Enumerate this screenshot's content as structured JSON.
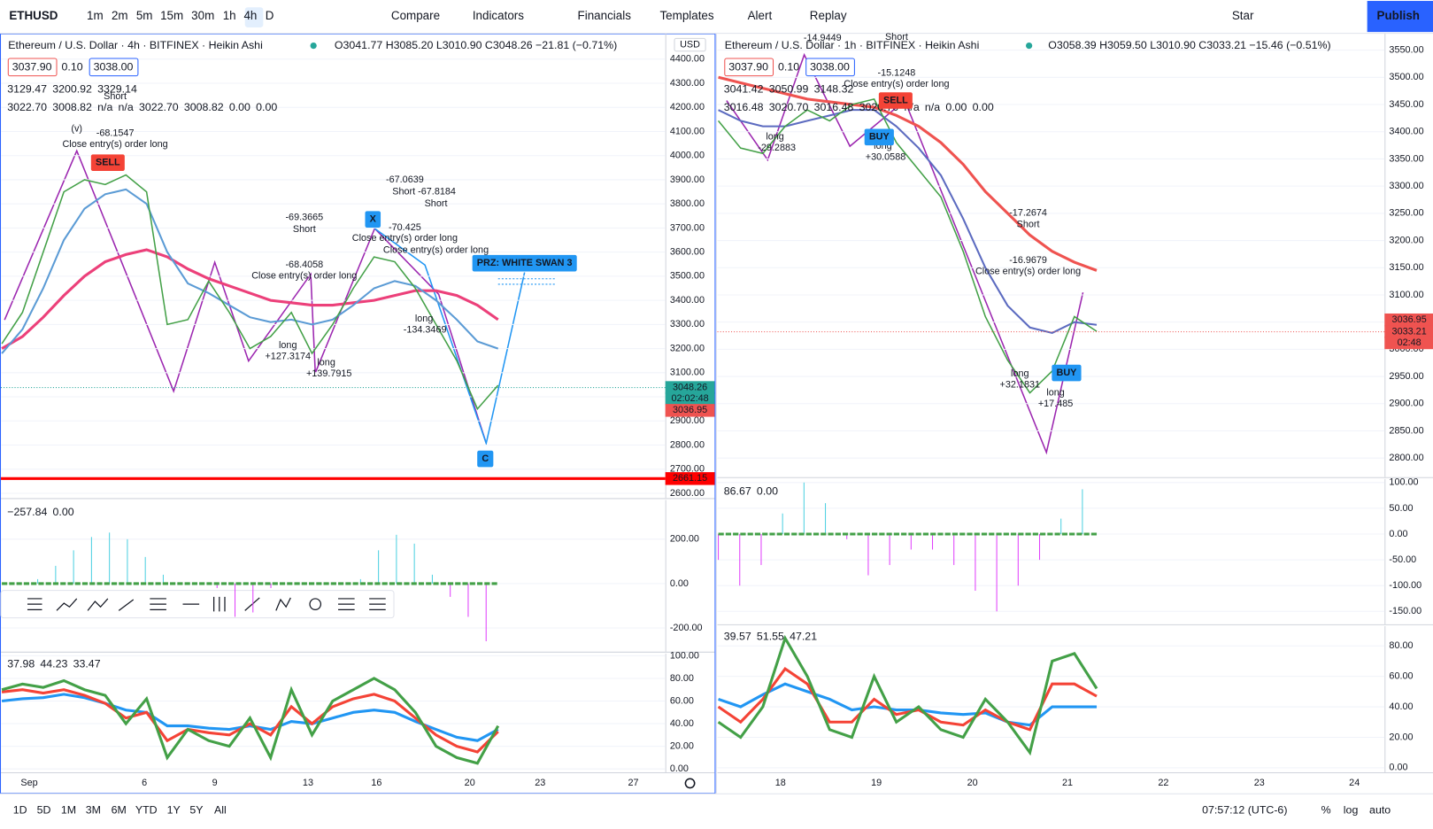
{
  "toolbar": {
    "symbol": "ETHUSD",
    "intervals": [
      "1m",
      "2m",
      "5m",
      "15m",
      "30m",
      "1h",
      "4h",
      "D"
    ],
    "items": [
      "Compare",
      "Indicators",
      "Financials",
      "Templates",
      "Alert",
      "Replay"
    ],
    "star": "Star",
    "publish": "Publish"
  },
  "left": {
    "legend": "Ethereum / U.S. Dollar · 4h · BITFINEX · Heikin Ashi",
    "ohlc": "O3041.77 H3085.20 L3010.90 C3048.26 −21.81 (−0.71%)",
    "bid": "3037.90",
    "spread": "0.10",
    "ask": "3038.00",
    "ind1": [
      "3129.47",
      "3200.92",
      "3329.14"
    ],
    "ind2": [
      "3022.70",
      "3008.82",
      "n/a",
      "n/a",
      "3022.70",
      "3008.82",
      "0.00",
      "0.00"
    ],
    "currency": "USD",
    "price": {
      "ylim": [
        2580,
        4505
      ],
      "yticks": [
        {
          "value": 2600,
          "label": "2600.00"
        },
        {
          "value": 2700,
          "label": "2700.00"
        },
        {
          "value": 2800,
          "label": "2800.00"
        },
        {
          "value": 2900,
          "label": "2900.00"
        },
        {
          "value": 3000,
          "label": "3000.00"
        },
        {
          "value": 3100,
          "label": "3100.00"
        },
        {
          "value": 3200,
          "label": "3200.00"
        },
        {
          "value": 3300,
          "label": "3300.00"
        },
        {
          "value": 3400,
          "label": "3400.00"
        },
        {
          "value": 3500,
          "label": "3500.00"
        },
        {
          "value": 3600,
          "label": "3600.00"
        },
        {
          "value": 3700,
          "label": "3700.00"
        },
        {
          "value": 3800,
          "label": "3800.00"
        },
        {
          "value": 3900,
          "label": "3900.00"
        },
        {
          "value": 4000,
          "label": "4000.00"
        },
        {
          "value": 4100,
          "label": "4100.00"
        },
        {
          "value": 4200,
          "label": "4200.00"
        },
        {
          "value": 4300,
          "label": "4300.00"
        },
        {
          "value": 4400,
          "label": "4400.00"
        }
      ],
      "series": [
        {
          "color": "#ec407a",
          "values": [
            3200,
            3250,
            3330,
            3420,
            3500,
            3560,
            3590,
            3610,
            3580,
            3530,
            3490,
            3460,
            3430,
            3400,
            3390,
            3380,
            3380,
            3390,
            3400,
            3420,
            3440,
            3440,
            3420,
            3380,
            3320
          ]
        },
        {
          "color": "#5b9bd5",
          "values": [
            3180,
            3280,
            3450,
            3650,
            3780,
            3840,
            3860,
            3800,
            3600,
            3470,
            3430,
            3380,
            3330,
            3310,
            3320,
            3300,
            3320,
            3380,
            3450,
            3480,
            3460,
            3400,
            3320,
            3230,
            3200
          ]
        },
        {
          "color": "#43a047",
          "values": [
            3220,
            3350,
            3600,
            3850,
            3900,
            3880,
            3920,
            3850,
            3300,
            3320,
            3480,
            3350,
            3200,
            3250,
            3350,
            3180,
            3300,
            3450,
            3580,
            3560,
            3450,
            3300,
            3150,
            2950,
            3048
          ]
        }
      ],
      "support": {
        "value": 2661.15,
        "color": "#ff0000"
      },
      "last": "3048.26",
      "countdown": "02:02:48",
      "mid": "3036.95"
    },
    "osc1": {
      "legend": [
        "−257.84",
        "0.00"
      ],
      "ylim": [
        -307,
        377
      ],
      "yticks": [
        {
          "value": -200,
          "label": "-200.00"
        },
        {
          "value": 0,
          "label": "0.00"
        },
        {
          "value": 200,
          "label": "200.00"
        }
      ],
      "pos_color": "#4dd0e1",
      "neg_color": "#e040fb",
      "values": [
        0,
        0,
        20,
        80,
        150,
        210,
        230,
        200,
        120,
        40,
        0,
        0,
        -20,
        -150,
        -130,
        -20,
        0,
        0,
        0,
        0,
        20,
        150,
        220,
        180,
        40,
        -60,
        -150,
        -260
      ]
    },
    "osc2": {
      "legend": [
        "37.98",
        "44.23",
        "33.47"
      ],
      "ylim": [
        -3,
        102
      ],
      "yticks": [
        {
          "value": 0,
          "label": "0.00"
        },
        {
          "value": 20,
          "label": "20.00"
        },
        {
          "value": 40,
          "label": "40.00"
        },
        {
          "value": 60,
          "label": "60.00"
        },
        {
          "value": 80,
          "label": "80.00"
        },
        {
          "value": 100,
          "label": "100.00"
        }
      ],
      "series": [
        {
          "color": "#2196f3",
          "values": [
            60,
            62,
            63,
            66,
            63,
            58,
            52,
            50,
            38,
            38,
            36,
            35,
            38,
            35,
            42,
            40,
            45,
            50,
            52,
            50,
            42,
            35,
            28,
            25,
            35
          ]
        },
        {
          "color": "#f44336",
          "values": [
            68,
            70,
            67,
            70,
            65,
            58,
            45,
            50,
            25,
            35,
            32,
            30,
            40,
            30,
            55,
            40,
            55,
            62,
            66,
            60,
            45,
            30,
            20,
            15,
            33
          ]
        },
        {
          "color": "#43a047",
          "values": [
            70,
            75,
            72,
            78,
            70,
            65,
            40,
            62,
            10,
            35,
            25,
            20,
            45,
            10,
            70,
            30,
            60,
            70,
            80,
            70,
            50,
            20,
            10,
            5,
            38
          ]
        }
      ]
    },
    "xlabels": [
      "Sep",
      "6",
      "9",
      "13",
      "16",
      "20",
      "23",
      "27"
    ],
    "annotations": [
      "(v)",
      "-68.1547",
      "Close entry(s) order long",
      "Short",
      "-69.3665",
      "Short",
      "-68.4058",
      "Close entry(s) order long",
      "-67.0639",
      "Short -67.8184",
      "Short",
      "-70.425",
      "Close entry(s) order long",
      "Close entry(s) order long",
      "long",
      "+127.3174",
      "long",
      "+139.7915",
      "long",
      "-134.3469",
      "PRZ: WHITE SWAN 3",
      "X",
      "C",
      "SELL"
    ]
  },
  "right": {
    "legend": "Ethereum / U.S. Dollar · 1h · BITFINEX · Heikin Ashi",
    "ohlc": "O3058.39 H3059.50 L3010.90 C3033.21 −15.46 (−0.51%)",
    "bid": "3037.90",
    "spread": "0.10",
    "ask": "3038.00",
    "ind1": [
      "3041.42",
      "3050.99",
      "3148.32"
    ],
    "ind2": [
      "3016.48",
      "3020.70",
      "3016.48",
      "3020.70",
      "n/a",
      "n/a",
      "0.00",
      "0.00"
    ],
    "price": {
      "ylim": [
        2765,
        3580
      ],
      "yticks": [
        {
          "value": 2800,
          "label": "2800.00"
        },
        {
          "value": 2850,
          "label": "2850.00"
        },
        {
          "value": 2900,
          "label": "2900.00"
        },
        {
          "value": 2950,
          "label": "2950.00"
        },
        {
          "value": 3000,
          "label": "3000.00"
        },
        {
          "value": 3050,
          "label": "3050.00"
        },
        {
          "value": 3100,
          "label": "3100.00"
        },
        {
          "value": 3150,
          "label": "3150.00"
        },
        {
          "value": 3200,
          "label": "3200.00"
        },
        {
          "value": 3250,
          "label": "3250.00"
        },
        {
          "value": 3300,
          "label": "3300.00"
        },
        {
          "value": 3350,
          "label": "3350.00"
        },
        {
          "value": 3400,
          "label": "3400.00"
        },
        {
          "value": 3450,
          "label": "3450.00"
        },
        {
          "value": 3500,
          "label": "3500.00"
        },
        {
          "value": 3550,
          "label": "3550.00"
        }
      ],
      "series": [
        {
          "color": "#ef5350",
          "values": [
            3500,
            3490,
            3480,
            3470,
            3460,
            3455,
            3450,
            3445,
            3430,
            3410,
            3380,
            3340,
            3290,
            3250,
            3210,
            3180,
            3160,
            3145
          ]
        },
        {
          "color": "#5c6bc0",
          "values": [
            3440,
            3420,
            3410,
            3410,
            3420,
            3430,
            3440,
            3440,
            3410,
            3370,
            3320,
            3240,
            3150,
            3080,
            3040,
            3030,
            3050,
            3045
          ]
        },
        {
          "color": "#43a047",
          "values": [
            3420,
            3370,
            3360,
            3410,
            3440,
            3420,
            3450,
            3460,
            3380,
            3330,
            3280,
            3180,
            3060,
            2980,
            2920,
            2960,
            3060,
            3033
          ]
        }
      ],
      "last": "3036.95",
      "close": "3033.21",
      "countdown": "02:48"
    },
    "osc1": {
      "legend": [
        "86.67",
        "0.00"
      ],
      "ylim": [
        -175,
        107
      ],
      "yticks": [
        {
          "value": -150,
          "label": "-150.00"
        },
        {
          "value": -100,
          "label": "-100.00"
        },
        {
          "value": -50,
          "label": "-50.00"
        },
        {
          "value": 0,
          "label": "0.00"
        },
        {
          "value": 50,
          "label": "50.00"
        },
        {
          "value": 100,
          "label": "100.00"
        }
      ],
      "pos_color": "#4dd0e1",
      "neg_color": "#e040fb",
      "values": [
        -50,
        -100,
        -60,
        40,
        100,
        60,
        -10,
        -80,
        -60,
        -30,
        -30,
        -60,
        -110,
        -150,
        -100,
        -50,
        30,
        87
      ]
    },
    "osc2": {
      "legend": [
        "39.57",
        "51.55",
        "47.21"
      ],
      "ylim": [
        -3,
        93
      ],
      "yticks": [
        {
          "value": 0,
          "label": "0.00"
        },
        {
          "value": 20,
          "label": "20.00"
        },
        {
          "value": 40,
          "label": "40.00"
        },
        {
          "value": 60,
          "label": "60.00"
        },
        {
          "value": 80,
          "label": "80.00"
        }
      ],
      "series": [
        {
          "color": "#2196f3",
          "values": [
            45,
            40,
            48,
            55,
            50,
            45,
            38,
            40,
            38,
            38,
            36,
            35,
            36,
            30,
            28,
            40,
            40,
            40
          ]
        },
        {
          "color": "#f44336",
          "values": [
            40,
            30,
            45,
            65,
            55,
            30,
            30,
            45,
            35,
            38,
            30,
            28,
            38,
            30,
            25,
            55,
            55,
            47
          ]
        },
        {
          "color": "#43a047",
          "values": [
            30,
            20,
            40,
            85,
            60,
            25,
            20,
            60,
            30,
            40,
            25,
            20,
            45,
            30,
            10,
            70,
            75,
            52
          ]
        }
      ]
    },
    "xlabels": [
      "18",
      "19",
      "20",
      "21",
      "22",
      "23",
      "24"
    ],
    "annotations": [
      "-14.9449",
      "Short",
      "-15.1248",
      "Close entry(s) order long",
      "long",
      "-29.2883",
      "long",
      "+30.0588",
      "-17.2674",
      "Short",
      "-16.9679",
      "Close entry(s) order long",
      "long",
      "+32.1831",
      "long",
      "+17.485",
      "BUY",
      "BUY",
      "SELL"
    ]
  },
  "bottom": {
    "ranges": [
      "1D",
      "5D",
      "1M",
      "3M",
      "6M",
      "YTD",
      "1Y",
      "5Y",
      "All"
    ],
    "time": "07:57:12 (UTC-6)",
    "percent": "%",
    "log": "log",
    "auto": "auto"
  }
}
